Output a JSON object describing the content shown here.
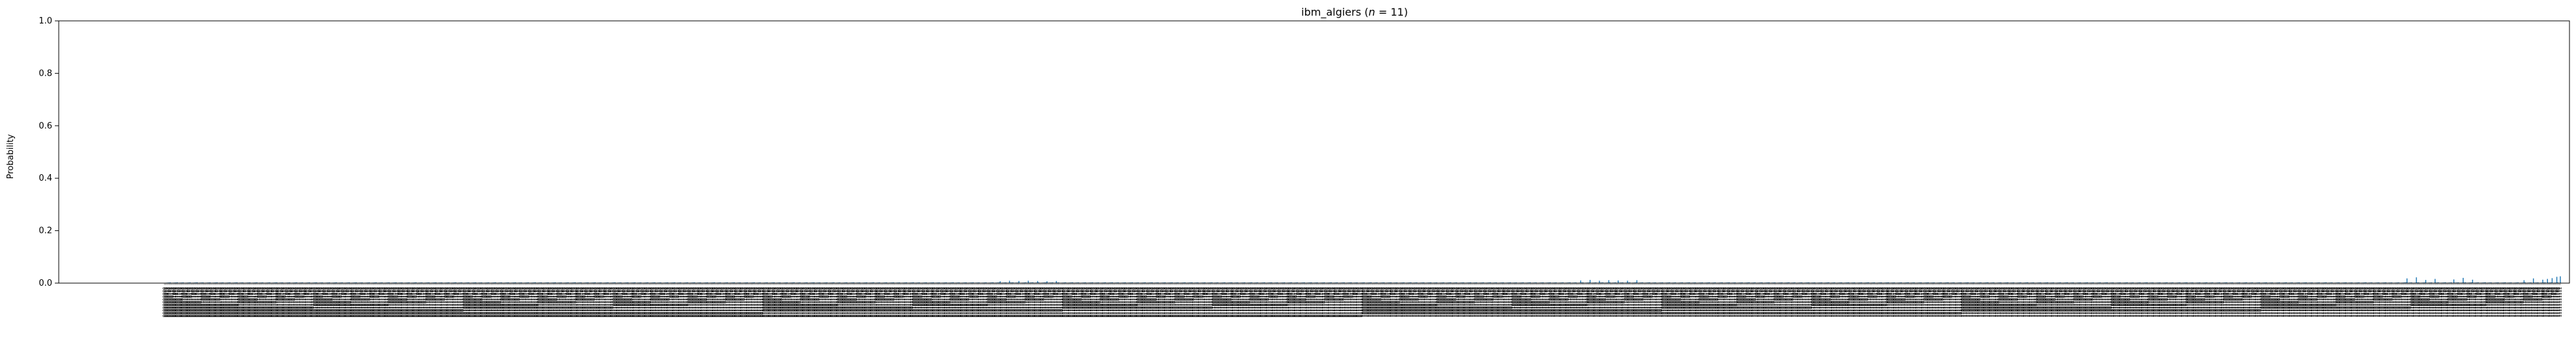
{
  "chart_data": {
    "type": "bar",
    "title": "ibm_algiers (n = 11)",
    "title_prefix": "ibm_algiers (",
    "title_n": "n",
    "title_suffix": " = 11)",
    "xlabel": "",
    "ylabel": "Probability",
    "ylim": [
      0,
      1.0
    ],
    "yticks": [
      "0.0",
      "0.2",
      "0.4",
      "0.6",
      "0.8",
      "1.0"
    ],
    "grid": false,
    "bar_color": "#1f77b4",
    "n_qubits": 11,
    "categories_note": "All 2048 basis states of 11 qubits in ascending order (00000000000 … 11111111111)",
    "baseline_value": 0.0025,
    "peaks": [
      {
        "category": "01011001010",
        "value": 0.007
      },
      {
        "category": "01011010010",
        "value": 0.009
      },
      {
        "category": "01011011010",
        "value": 0.008
      },
      {
        "category": "01011100010",
        "value": 0.009
      },
      {
        "category": "01011101010",
        "value": 0.008
      },
      {
        "category": "01011110010",
        "value": 0.007
      },
      {
        "category": "01011111010",
        "value": 0.008
      },
      {
        "category": "10010111010",
        "value": 0.01
      },
      {
        "category": "10011000010",
        "value": 0.012
      },
      {
        "category": "10011001010",
        "value": 0.009
      },
      {
        "category": "10011010010",
        "value": 0.011
      },
      {
        "category": "10011011010",
        "value": 0.01
      },
      {
        "category": "10011100010",
        "value": 0.009
      },
      {
        "category": "10011101010",
        "value": 0.011
      },
      {
        "category": "11101111100",
        "value": 0.018
      },
      {
        "category": "11110000100",
        "value": 0.022
      },
      {
        "category": "11110001100",
        "value": 0.012
      },
      {
        "category": "11110010100",
        "value": 0.016
      },
      {
        "category": "11110100100",
        "value": 0.014
      },
      {
        "category": "11110101100",
        "value": 0.02
      },
      {
        "category": "11110110100",
        "value": 0.013
      },
      {
        "category": "11111100000",
        "value": 0.011
      },
      {
        "category": "11111101000",
        "value": 0.018
      },
      {
        "category": "11111110000",
        "value": 0.013
      },
      {
        "category": "11111110100",
        "value": 0.016
      },
      {
        "category": "11111111000",
        "value": 0.019
      },
      {
        "category": "11111111100",
        "value": 0.024
      },
      {
        "category": "11111111111",
        "value": 0.026
      }
    ]
  }
}
